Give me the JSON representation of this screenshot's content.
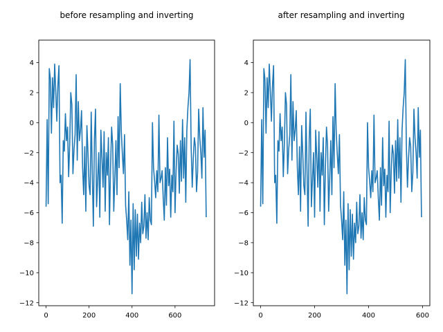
{
  "chart_data": [
    {
      "type": "line",
      "title": "before resampling and inverting",
      "xlabel": "",
      "ylabel": "",
      "xlim": [
        -34,
        784
      ],
      "ylim": [
        -12.2,
        5.5
      ],
      "xticks": [
        0,
        200,
        400,
        600
      ],
      "yticks": [
        -12,
        -10,
        -8,
        -6,
        -4,
        -2,
        0,
        2,
        4
      ],
      "grid": false,
      "color": "#1f77b4",
      "series": [
        {
          "x": [
            0,
            5,
            10,
            15,
            20,
            25,
            30,
            35,
            40,
            45,
            50,
            55,
            60,
            65,
            70,
            75,
            80,
            85,
            90,
            95,
            100,
            105,
            110,
            115,
            120,
            125,
            130,
            135,
            140,
            145,
            150,
            155,
            160,
            165,
            170,
            175,
            180,
            185,
            190,
            195,
            200,
            205,
            210,
            215,
            220,
            225,
            230,
            235,
            240,
            245,
            250,
            255,
            260,
            265,
            270,
            275,
            280,
            285,
            290,
            295,
            300,
            305,
            310,
            315,
            320,
            325,
            330,
            335,
            340,
            345,
            350,
            355,
            360,
            365,
            370,
            375,
            380,
            385,
            390,
            395,
            400,
            405,
            410,
            415,
            420,
            425,
            430,
            435,
            440,
            445,
            450,
            455,
            460,
            465,
            470,
            475,
            480,
            485,
            490,
            495,
            500,
            505,
            510,
            515,
            520,
            525,
            530,
            535,
            540,
            545,
            550,
            555,
            560,
            565,
            570,
            575,
            580,
            585,
            590,
            595,
            600,
            605,
            610,
            615,
            620,
            625,
            630,
            635,
            640,
            645,
            650,
            655,
            660,
            665,
            670,
            675,
            680,
            685,
            690,
            695,
            700,
            705,
            710,
            715,
            720,
            725,
            730,
            735,
            740,
            745
          ],
          "y": [
            -5.6,
            0.2,
            -5.4,
            3.6,
            2.9,
            -0.7,
            3.0,
            1.0,
            3.9,
            2.1,
            0.1,
            2.5,
            3.8,
            -4.0,
            -3.5,
            -6.7,
            -1.2,
            -1.9,
            0.6,
            -1.2,
            -0.3,
            -3.6,
            -1.4,
            2.0,
            1.2,
            -3.4,
            -1.8,
            -0.8,
            3.2,
            -2.5,
            1.4,
            -1.2,
            -0.5,
            0.8,
            -3.0,
            -4.8,
            -1.6,
            -5.9,
            -0.2,
            -2.0,
            -4.2,
            -4.8,
            0.7,
            -3.3,
            -6.9,
            -1.1,
            0.9,
            -5.6,
            -3.8,
            -2.0,
            -6.3,
            -0.5,
            -2.3,
            -4.3,
            -0.6,
            -5.9,
            -2.0,
            -3.5,
            -1.0,
            -6.8,
            -3.0,
            -0.3,
            -1.5,
            -5.9,
            -3.7,
            -1.2,
            -4.8,
            0.4,
            -3.0,
            2.6,
            -0.6,
            -2.1,
            -3.4,
            -0.8,
            -5.5,
            -6.5,
            -7.8,
            -4.6,
            -9.5,
            -6.5,
            -11.4,
            -5.4,
            -9.8,
            -5.8,
            -8.9,
            -6.1,
            -9.1,
            -6.7,
            -8.0,
            -5.3,
            -7.4,
            -6.9,
            -4.8,
            -7.7,
            -6.0,
            -7.8,
            -5.0,
            -6.5,
            -6.8,
            0.0,
            -3.0,
            -3.9,
            -5.0,
            -3.2,
            -4.6,
            0.5,
            -4.0,
            -3.7,
            -3.2,
            -5.0,
            -6.5,
            -3.0,
            -5.5,
            -1.0,
            -4.2,
            -3.1,
            -6.3,
            -3.5,
            -4.6,
            0.1,
            -6.0,
            -3.2,
            -1.5,
            -2.1,
            -4.7,
            -1.2,
            -3.9,
            0.2,
            -3.7,
            -1.0,
            -5.3,
            -0.5,
            1.0,
            2.0,
            4.2,
            -1.6,
            -4.3,
            -2.4,
            -1.0,
            -1.6,
            -4.6,
            -3.3,
            0.9,
            -1.0,
            -2.0,
            -3.7,
            1.0,
            -2.3,
            -0.5,
            -6.3
          ],
          "note_style": "solid"
        }
      ]
    },
    {
      "type": "line",
      "title": "after resampling and inverting",
      "xlabel": "",
      "ylabel": "",
      "xlim": [
        -27,
        627
      ],
      "ylim": [
        -12.2,
        5.5
      ],
      "xticks": [
        0,
        200,
        400,
        600
      ],
      "yticks": [
        -12,
        -10,
        -8,
        -6,
        -4,
        -2,
        0,
        2,
        4
      ],
      "grid": false,
      "color": "#1f77b4",
      "series": [
        {
          "x": [
            0,
            4,
            8,
            12,
            16,
            20,
            24,
            28,
            32,
            36,
            40,
            44,
            48,
            52,
            56,
            60,
            64,
            68,
            72,
            76,
            80,
            84,
            88,
            92,
            96,
            100,
            104,
            108,
            112,
            116,
            120,
            124,
            128,
            132,
            136,
            140,
            144,
            148,
            152,
            156,
            160,
            164,
            168,
            172,
            176,
            180,
            184,
            188,
            192,
            196,
            200,
            204,
            208,
            212,
            216,
            220,
            224,
            228,
            232,
            236,
            240,
            244,
            248,
            252,
            256,
            260,
            264,
            268,
            272,
            276,
            280,
            284,
            288,
            292,
            296,
            300,
            304,
            308,
            312,
            316,
            320,
            324,
            328,
            332,
            336,
            340,
            344,
            348,
            352,
            356,
            360,
            364,
            368,
            372,
            376,
            380,
            384,
            388,
            392,
            396,
            400,
            404,
            408,
            412,
            416,
            420,
            424,
            428,
            432,
            436,
            440,
            444,
            448,
            452,
            456,
            460,
            464,
            468,
            472,
            476,
            480,
            484,
            488,
            492,
            496,
            500,
            504,
            508,
            512,
            516,
            520,
            524,
            528,
            532,
            536,
            540,
            544,
            548,
            552,
            556,
            560,
            564,
            568,
            572,
            576,
            580,
            584,
            588,
            592,
            596
          ],
          "y": [
            -5.6,
            0.2,
            -5.4,
            3.6,
            2.9,
            -0.7,
            3.0,
            1.0,
            3.9,
            2.1,
            0.1,
            2.5,
            3.8,
            -4.0,
            -3.5,
            -6.7,
            -1.2,
            -1.9,
            0.6,
            -1.2,
            -0.3,
            -3.6,
            -1.4,
            2.0,
            1.2,
            -3.4,
            -1.8,
            -0.8,
            3.2,
            -2.5,
            1.4,
            -1.2,
            -0.5,
            0.8,
            -3.0,
            -4.8,
            -1.6,
            -5.9,
            -0.2,
            -2.0,
            -4.2,
            -4.8,
            0.7,
            -3.3,
            -6.9,
            -1.1,
            0.9,
            -5.6,
            -3.8,
            -2.0,
            -6.3,
            -0.5,
            -2.3,
            -4.3,
            -0.6,
            -5.9,
            -2.0,
            -3.5,
            -1.0,
            -6.8,
            -3.0,
            -0.3,
            -1.5,
            -5.9,
            -3.7,
            -1.2,
            -4.8,
            0.4,
            -3.0,
            2.6,
            -0.6,
            -2.1,
            -3.4,
            -0.8,
            -5.5,
            -6.5,
            -7.8,
            -4.6,
            -9.5,
            -6.5,
            -11.4,
            -5.4,
            -9.8,
            -5.8,
            -8.9,
            -6.1,
            -9.1,
            -6.7,
            -8.0,
            -5.3,
            -7.4,
            -6.9,
            -4.8,
            -7.7,
            -6.0,
            -7.8,
            -5.0,
            -6.5,
            -6.8,
            0.0,
            -3.0,
            -3.9,
            -5.0,
            -3.2,
            -4.6,
            0.5,
            -4.0,
            -3.7,
            -3.2,
            -5.0,
            -6.5,
            -3.0,
            -5.5,
            -1.0,
            -4.2,
            -3.1,
            -6.3,
            -3.5,
            -4.6,
            0.1,
            -6.0,
            -3.2,
            -1.5,
            -2.1,
            -4.7,
            -1.2,
            -3.9,
            0.2,
            -3.7,
            -1.0,
            -5.3,
            -0.5,
            1.0,
            2.0,
            4.2,
            -1.6,
            -4.3,
            -2.4,
            -1.0,
            -1.6,
            -4.6,
            -3.3,
            0.9,
            -1.0,
            -2.0,
            -3.7,
            1.0,
            -2.3,
            -0.5,
            -6.3
          ]
        }
      ]
    }
  ]
}
